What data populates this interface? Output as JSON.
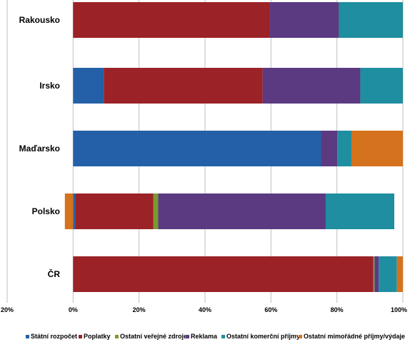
{
  "chart_data": {
    "type": "bar",
    "orientation": "horizontal",
    "stacked": true,
    "categories": [
      "Rakousko",
      "Irsko",
      "Maďarsko",
      "Polsko",
      "ČR"
    ],
    "series": [
      {
        "name": "Státní rozpočet",
        "color": "#2460A7",
        "values": [
          0,
          9.3,
          75.2,
          0.7,
          0
        ]
      },
      {
        "name": "Poplatky",
        "color": "#9B2226",
        "values": [
          59.7,
          48.2,
          0,
          23.6,
          91.0
        ]
      },
      {
        "name": "Ostatní veřejné zdroje",
        "color": "#7A9A2E",
        "values": [
          0,
          0,
          0,
          1.5,
          0.4
        ]
      },
      {
        "name": "Reklama",
        "color": "#5B3A82",
        "values": [
          20.9,
          29.6,
          4.9,
          50.8,
          1.3
        ]
      },
      {
        "name": "Ostatní komerční příjmy",
        "color": "#1F8EA0",
        "values": [
          19.4,
          12.9,
          4.3,
          20.8,
          5.5
        ]
      },
      {
        "name": "Ostatní mimořádné příjmy/výdaje",
        "color": "#D4721D",
        "values": [
          0,
          0,
          15.6,
          -2.5,
          1.8
        ]
      }
    ],
    "xlim": [
      -20,
      100
    ],
    "x_ticks": [
      {
        "value": -20,
        "label": "20%"
      },
      {
        "value": 0,
        "label": "0%"
      },
      {
        "value": 20,
        "label": "20%"
      },
      {
        "value": 40,
        "label": "40%"
      },
      {
        "value": 60,
        "label": "60%"
      },
      {
        "value": 80,
        "label": "80%"
      },
      {
        "value": 100,
        "label": "100%"
      }
    ],
    "grid": true,
    "legend_position": "bottom"
  }
}
